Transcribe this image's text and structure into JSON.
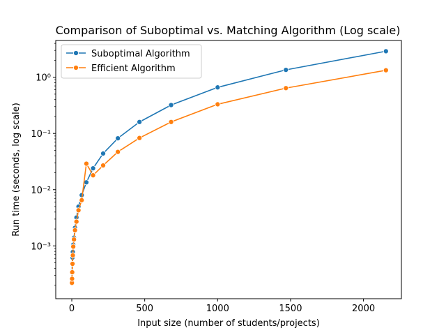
{
  "chart_data": {
    "type": "line",
    "title": "Comparison of Suboptimal vs. Matching Algorithm (Log scale)",
    "xlabel": "Input size (number of students/projects)",
    "ylabel": "Run time (seconds, log scale)",
    "yscale": "log",
    "xlim": [
      -110,
      2260
    ],
    "ylim": [
      0.000115,
      4.5
    ],
    "xticks": [
      0,
      500,
      1000,
      1500,
      2000
    ],
    "xtick_labels": [
      "0",
      "500",
      "1000",
      "1500",
      "2000"
    ],
    "yticks": [
      0.001,
      0.01,
      0.1,
      1
    ],
    "ytick_labels": [
      "10⁻³",
      "10⁻²",
      "10⁻¹",
      "10⁰"
    ],
    "grid": false,
    "legend_position": "top-left",
    "series": [
      {
        "name": "Suboptimal Algorithm",
        "color": "#1f77b4",
        "marker": "circle",
        "x": [
          1,
          2,
          3,
          5,
          7,
          10,
          15,
          22,
          32,
          46,
          68,
          100,
          146,
          215,
          316,
          464,
          681,
          1000,
          1468,
          2154
        ],
        "y": [
          0.00025,
          0.00035,
          0.00048,
          0.00062,
          0.00078,
          0.00105,
          0.0014,
          0.0021,
          0.0032,
          0.005,
          0.008,
          0.0135,
          0.024,
          0.044,
          0.082,
          0.16,
          0.32,
          0.66,
          1.35,
          2.9
        ]
      },
      {
        "name": "Efficient Algorithm",
        "color": "#ff7f0e",
        "marker": "circle",
        "x": [
          1,
          2,
          3,
          5,
          7,
          10,
          15,
          22,
          32,
          46,
          68,
          100,
          146,
          215,
          316,
          464,
          681,
          1000,
          1468,
          2154
        ],
        "y": [
          0.00022,
          0.00026,
          0.00034,
          0.00048,
          0.00068,
          0.00097,
          0.0013,
          0.0019,
          0.0027,
          0.0043,
          0.0065,
          0.029,
          0.018,
          0.027,
          0.047,
          0.083,
          0.16,
          0.33,
          0.64,
          1.33
        ]
      }
    ]
  }
}
